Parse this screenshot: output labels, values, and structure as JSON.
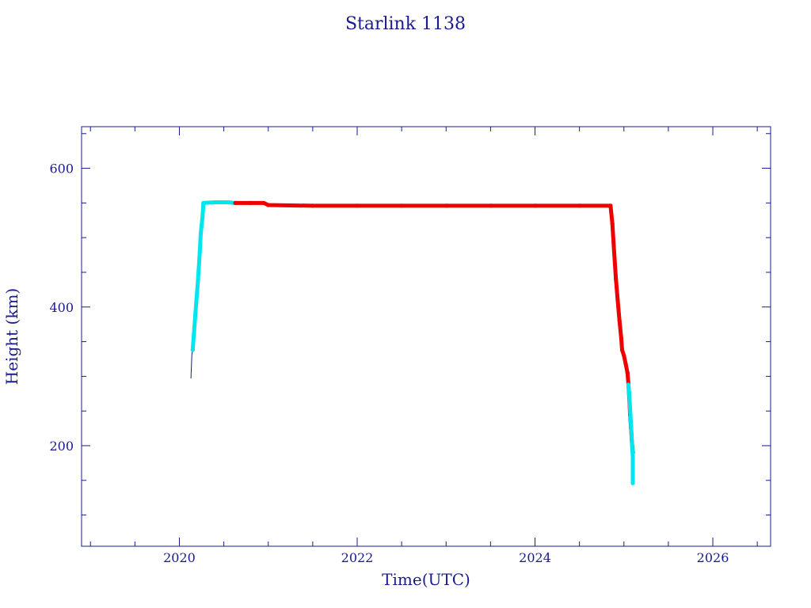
{
  "chart_data": {
    "type": "scatter",
    "title": "Starlink 1138",
    "xlabel": "Time(UTC)",
    "ylabel": "Height (km)",
    "xlim": [
      2018.9,
      2026.65
    ],
    "ylim": [
      55,
      660
    ],
    "xticks": [
      2020,
      2022,
      2024,
      2026
    ],
    "yticks": [
      200,
      400,
      600
    ],
    "grid": false,
    "colors": {
      "axis": "#1a1a8c",
      "raise": "#00e5ee",
      "ops": "#ee0000",
      "trace": "#1a1a8c"
    },
    "series": [
      {
        "color_key": "trace",
        "points": [
          [
            2020.13,
            297
          ],
          [
            2020.14,
            330
          ],
          [
            2020.15,
            340
          ]
        ]
      },
      {
        "color_key": "raise",
        "points": [
          [
            2020.15,
            338
          ],
          [
            2020.18,
            390
          ],
          [
            2020.21,
            440
          ],
          [
            2020.23,
            480
          ],
          [
            2020.24,
            505
          ],
          [
            2020.26,
            530
          ],
          [
            2020.27,
            550
          ],
          [
            2020.4,
            551
          ],
          [
            2020.55,
            551
          ],
          [
            2020.62,
            550
          ]
        ]
      },
      {
        "color_key": "ops",
        "points": [
          [
            2020.63,
            550
          ],
          [
            2020.8,
            550
          ],
          [
            2020.95,
            550
          ],
          [
            2021.0,
            547
          ],
          [
            2021.5,
            546
          ],
          [
            2022.0,
            546
          ],
          [
            2022.5,
            546
          ],
          [
            2023.0,
            546
          ],
          [
            2023.5,
            546
          ],
          [
            2024.0,
            546
          ],
          [
            2024.5,
            546
          ],
          [
            2024.85,
            546
          ],
          [
            2024.87,
            520
          ],
          [
            2024.89,
            480
          ],
          [
            2024.91,
            440
          ],
          [
            2024.93,
            410
          ],
          [
            2024.95,
            380
          ],
          [
            2024.97,
            355
          ],
          [
            2024.98,
            338
          ],
          [
            2025.0,
            330
          ],
          [
            2025.02,
            318
          ],
          [
            2025.04,
            305
          ],
          [
            2025.05,
            290
          ],
          [
            2025.06,
            270
          ],
          [
            2025.07,
            245
          ],
          [
            2025.08,
            225
          ],
          [
            2025.09,
            205
          ],
          [
            2025.1,
            190
          ]
        ]
      },
      {
        "color_key": "raise",
        "points": [
          [
            2025.05,
            288
          ],
          [
            2025.06,
            275
          ],
          [
            2025.1,
            183
          ],
          [
            2025.1,
            146
          ]
        ]
      }
    ]
  }
}
